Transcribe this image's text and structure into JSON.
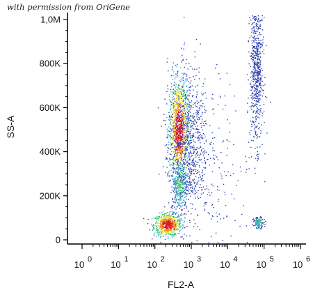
{
  "watermark": "with permission from OriGene",
  "chart_data": {
    "type": "scatter",
    "plot_style": "flow cytometry density dot plot (blue low density, green/yellow/red high density)",
    "xlabel": "FL2-A",
    "ylabel": "SS-A",
    "x_scale": "log",
    "x_range": [
      1,
      1000000
    ],
    "y_range": [
      0,
      1000000
    ],
    "x_ticks": [
      {
        "base": "10",
        "exp": "0",
        "value": 1
      },
      {
        "base": "10",
        "exp": "1",
        "value": 10
      },
      {
        "base": "10",
        "exp": "2",
        "value": 100
      },
      {
        "base": "10",
        "exp": "3",
        "value": 1000
      },
      {
        "base": "10",
        "exp": "4",
        "value": 10000
      },
      {
        "base": "10",
        "exp": "5",
        "value": 100000
      },
      {
        "base": "10",
        "exp": "6",
        "value": 1000000
      }
    ],
    "y_ticks": [
      {
        "label": "0",
        "value": 0
      },
      {
        "label": "200K",
        "value": 200000
      },
      {
        "label": "400K",
        "value": 400000
      },
      {
        "label": "600K",
        "value": 600000
      },
      {
        "label": "800K",
        "value": 800000
      },
      {
        "label": "1,0M",
        "value": 1000000
      }
    ],
    "populations": [
      {
        "x": 220,
        "y": 70000,
        "sx": 0.19,
        "sy": 25000,
        "n": 650,
        "density": "high"
      },
      {
        "x": 450,
        "y": 500000,
        "sx": 0.13,
        "sy": 110000,
        "n": 1100,
        "density": "high"
      },
      {
        "x": 470,
        "y": 250000,
        "sx": 0.11,
        "sy": 60000,
        "n": 350,
        "density": "medium"
      },
      {
        "x": 800,
        "y": 450000,
        "sx": 0.28,
        "sy": 170000,
        "n": 800,
        "density": "low"
      },
      {
        "x": 60000,
        "y": 780000,
        "sx": 0.09,
        "sy": 170000,
        "n": 650,
        "density": "low"
      },
      {
        "x": 70000,
        "y": 80000,
        "sx": 0.07,
        "sy": 12000,
        "n": 130,
        "density": "medium"
      },
      {
        "x": 5000,
        "y": 300000,
        "sx": 0.55,
        "sy": 250000,
        "n": 200,
        "density": "low"
      }
    ],
    "colors": {
      "low": "#2b3fb0",
      "medium": "#2fa7d6",
      "high_1": "#3cc46a",
      "high_2": "#e8e12a",
      "high_3": "#f28a1c",
      "peak": "#e01b1b"
    }
  }
}
